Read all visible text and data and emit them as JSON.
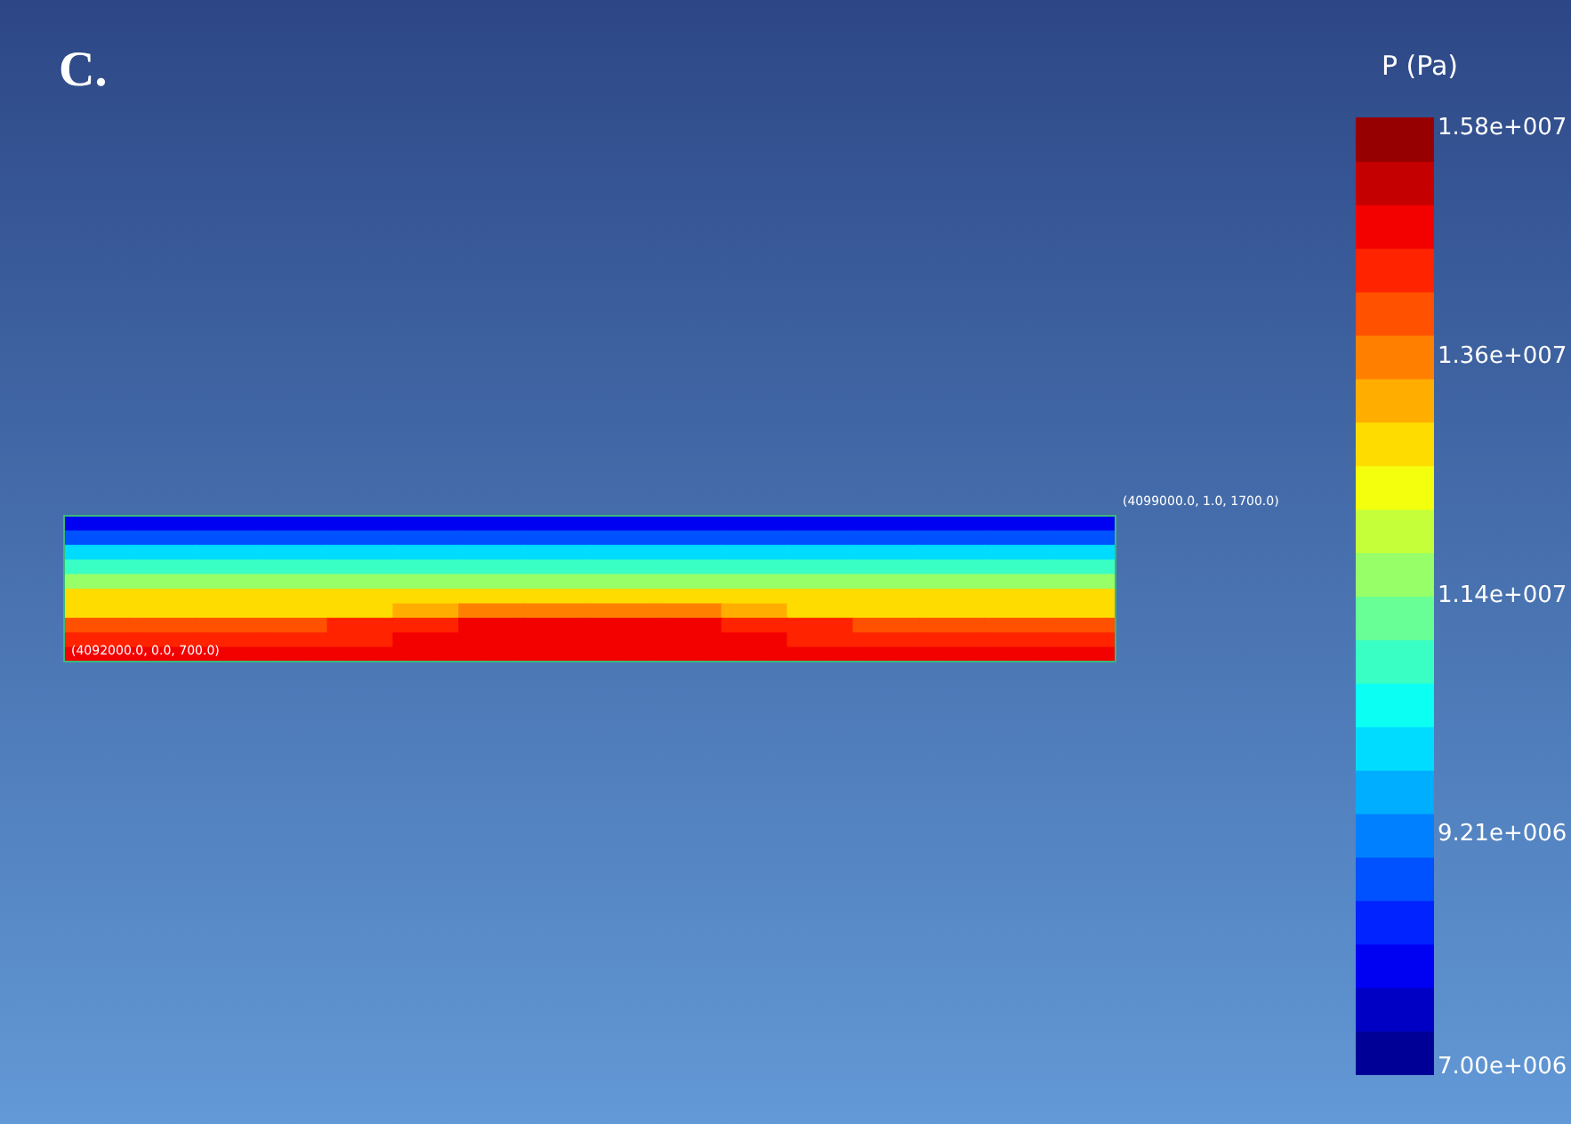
{
  "chart_data": {
    "type": "heatmap",
    "title": "C.",
    "clabel": "P (Pa)",
    "categories": [
      null,
      null,
      null,
      null,
      null,
      null,
      null,
      null,
      null,
      null,
      null,
      null,
      null,
      null,
      null,
      null
    ],
    "y_categories": [
      null,
      null,
      null,
      null,
      null,
      null,
      null,
      null,
      null,
      null
    ],
    "cells": [
      [
        7900000,
        7900000,
        7900000,
        7900000,
        7900000,
        7900000,
        7900000,
        7900000,
        7900000,
        7900000,
        7900000,
        7900000,
        7900000,
        7900000,
        7900000,
        7900000
      ],
      [
        8600000,
        8600000,
        8600000,
        8600000,
        8600000,
        8600000,
        8600000,
        8600000,
        8600000,
        8600000,
        8600000,
        8600000,
        8600000,
        8600000,
        8600000,
        8600000
      ],
      [
        10100000,
        10100000,
        10100000,
        10100000,
        10100000,
        10100000,
        10100000,
        10100000,
        10100000,
        10100000,
        10100000,
        10100000,
        10100000,
        10100000,
        10100000,
        10100000
      ],
      [
        10700000,
        10700000,
        10700000,
        10700000,
        10700000,
        10700000,
        10700000,
        10700000,
        10700000,
        10700000,
        10700000,
        10700000,
        10700000,
        10700000,
        10700000,
        10700000
      ],
      [
        11700000,
        11700000,
        11700000,
        11700000,
        11700000,
        11700000,
        11700000,
        11700000,
        11700000,
        11700000,
        11700000,
        11700000,
        11700000,
        11700000,
        11700000,
        11700000
      ],
      [
        12600000,
        12600000,
        12600000,
        12600000,
        12600000,
        12600000,
        12600000,
        12600000,
        12600000,
        12600000,
        12600000,
        12600000,
        12600000,
        12600000,
        12600000,
        12600000
      ],
      [
        13000000,
        13000000,
        13000000,
        13000000,
        13000000,
        13200000,
        13600000,
        13700000,
        13700000,
        13600000,
        13200000,
        13000000,
        13000000,
        13000000,
        13000000,
        13000000
      ],
      [
        13900000,
        13900000,
        14000000,
        14100000,
        14200000,
        14300000,
        14900000,
        14900000,
        14900000,
        14900000,
        14300000,
        14200000,
        14100000,
        14000000,
        13900000,
        13900000
      ],
      [
        14400000,
        14400000,
        14400000,
        14500000,
        14500000,
        14600000,
        14900000,
        14900000,
        14900000,
        14900000,
        14600000,
        14500000,
        14500000,
        14400000,
        14400000,
        14400000
      ],
      [
        14900000,
        14900000,
        14900000,
        14900000,
        14900000,
        14900000,
        14900000,
        14900000,
        14900000,
        14900000,
        14900000,
        14900000,
        14900000,
        14900000,
        14900000,
        14900000
      ]
    ],
    "clim": [
      7000000,
      15800000
    ],
    "cticks": [
      {
        "value": 15800000,
        "label": "1.58e+007"
      },
      {
        "value": 13600000,
        "label": "1.36e+007"
      },
      {
        "value": 11400000,
        "label": "1.14e+007"
      },
      {
        "value": 9210000,
        "label": "9.21e+006"
      },
      {
        "value": 7000000,
        "label": "7.00e+006"
      }
    ],
    "annotations": [
      "(4099000.0, 1.0, 1700.0)",
      "(4092000.0, 0.0, 700.0)"
    ]
  }
}
